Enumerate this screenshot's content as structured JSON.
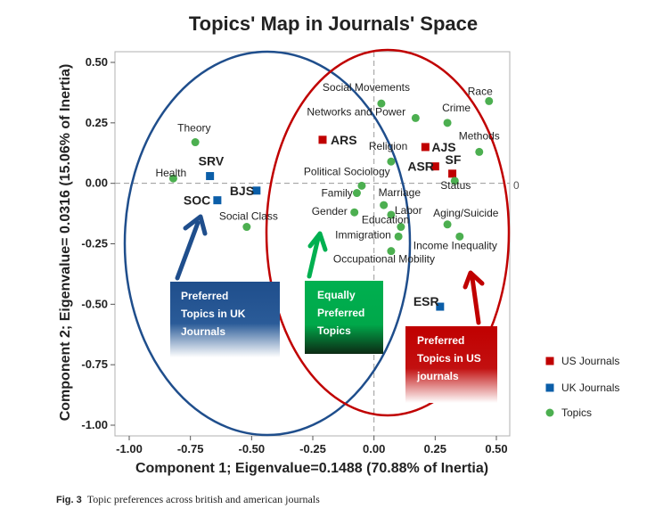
{
  "chart_data": {
    "type": "scatter",
    "title": "Topics' Map in Journals' Space",
    "xlabel": "Component 1; Eigenvalue=0.1488 (70.88% of Inertia)",
    "ylabel": "Component 2; Eigenvalue= 0.0316 (15.06% of Inertia)",
    "xlim": [
      -1.05,
      0.55
    ],
    "ylim": [
      -1.04,
      0.55
    ],
    "x_ticks": [
      -1.0,
      -0.75,
      -0.5,
      -0.25,
      0.0,
      0.25,
      0.5
    ],
    "y_ticks": [
      -1.0,
      -0.75,
      -0.5,
      -0.25,
      0.0,
      0.25,
      0.5
    ],
    "x_tick_labels": [
      "-1.00",
      "-0.75",
      "-0.50",
      "-0.25",
      "0.00",
      "0.25",
      "0.50"
    ],
    "y_tick_labels": [
      "-1.00",
      "-0.75",
      "-0.50",
      "-0.25",
      "0.00",
      "0.25",
      "0.50"
    ],
    "zero_line_label": "0",
    "legend_position": "right",
    "series": [
      {
        "name": "US Journals",
        "color": "#c00000",
        "marker": "square",
        "points": [
          {
            "label": "ARS",
            "x": -0.21,
            "y": 0.18
          },
          {
            "label": "AJS",
            "x": 0.21,
            "y": 0.15
          },
          {
            "label": "ASR",
            "x": 0.25,
            "y": 0.07
          },
          {
            "label": "SF",
            "x": 0.32,
            "y": 0.04
          }
        ]
      },
      {
        "name": "UK Journals",
        "color": "#0b5ea8",
        "marker": "square",
        "points": [
          {
            "label": "SRV",
            "x": -0.67,
            "y": 0.03
          },
          {
            "label": "BJS",
            "x": -0.48,
            "y": -0.03
          },
          {
            "label": "SOC",
            "x": -0.64,
            "y": -0.07
          },
          {
            "label": "ESR",
            "x": 0.27,
            "y": -0.51
          }
        ]
      },
      {
        "name": "Topics",
        "color": "#4caf50",
        "marker": "circle",
        "points": [
          {
            "label": "Race",
            "x": 0.47,
            "y": 0.34
          },
          {
            "label": "Social Movements",
            "x": 0.03,
            "y": 0.33
          },
          {
            "label": "Crime",
            "x": 0.3,
            "y": 0.25
          },
          {
            "label": "Networks and Power",
            "x": 0.17,
            "y": 0.27
          },
          {
            "label": "Theory",
            "x": -0.73,
            "y": 0.17
          },
          {
            "label": "Methods",
            "x": 0.43,
            "y": 0.13
          },
          {
            "label": "Religion",
            "x": 0.07,
            "y": 0.09
          },
          {
            "label": "Health",
            "x": -0.82,
            "y": 0.02
          },
          {
            "label": "Political Sociology",
            "x": -0.05,
            "y": -0.01
          },
          {
            "label": "Status",
            "x": 0.33,
            "y": 0.01
          },
          {
            "label": "Family",
            "x": -0.07,
            "y": -0.04
          },
          {
            "label": "Marriage",
            "x": 0.04,
            "y": -0.09
          },
          {
            "label": "Gender",
            "x": -0.08,
            "y": -0.12
          },
          {
            "label": "Labor",
            "x": 0.07,
            "y": -0.13
          },
          {
            "label": "Aging/Suicide",
            "x": 0.3,
            "y": -0.17
          },
          {
            "label": "Education",
            "x": 0.11,
            "y": -0.18
          },
          {
            "label": "Social Class",
            "x": -0.52,
            "y": -0.18
          },
          {
            "label": "Immigration",
            "x": 0.1,
            "y": -0.22
          },
          {
            "label": "Income Inequality",
            "x": 0.35,
            "y": -0.22
          },
          {
            "label": "Occupational Mobility",
            "x": 0.07,
            "y": -0.28
          }
        ]
      }
    ],
    "annotations": [
      {
        "text": "Preferred Topics in UK Journals",
        "color": "#1f4e8c"
      },
      {
        "text": "Equally Preferred Topics",
        "color": "#00b050"
      },
      {
        "text": "Preferred Topics in US journals",
        "color": "#c00000"
      }
    ]
  },
  "caption": {
    "figure_label": "Fig. 3",
    "text": "Topic preferences across british and american journals"
  }
}
